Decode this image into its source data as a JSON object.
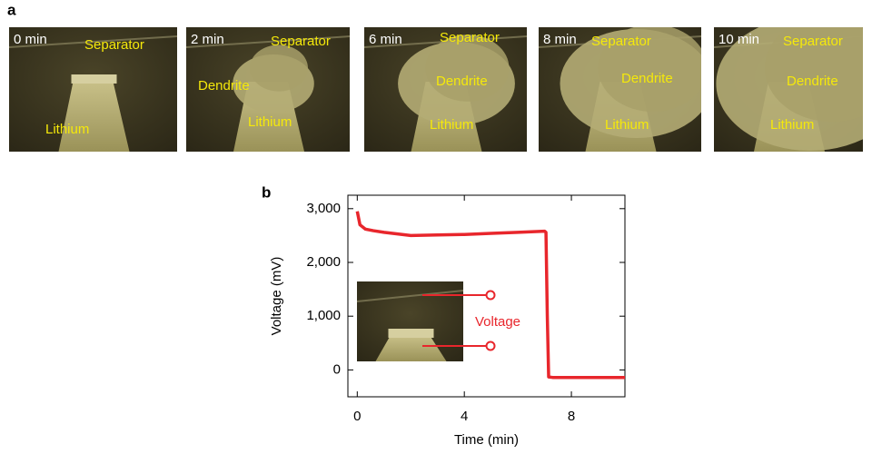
{
  "panel_a": {
    "label": "a",
    "frames": [
      {
        "time": "0 min",
        "labels": [
          "Separator",
          "Lithium"
        ]
      },
      {
        "time": "2 min",
        "labels": [
          "Separator",
          "Dendrite",
          "Lithium"
        ]
      },
      {
        "time": "6 min",
        "labels": [
          "Separator",
          "Dendrite",
          "Lithium"
        ]
      },
      {
        "time": "8 min",
        "labels": [
          "Separator",
          "Dendrite",
          "Lithium"
        ]
      },
      {
        "time": "10 min",
        "labels": [
          "Separator",
          "Dendrite",
          "Lithium"
        ]
      }
    ]
  },
  "chart_data": {
    "type": "line",
    "panel_label": "b",
    "x_label": "Time (min)",
    "y_label": "Voltage (mV)",
    "x": [
      0,
      0.1,
      0.3,
      0.6,
      1,
      2,
      3,
      4,
      5,
      6,
      7,
      7.05,
      7.1,
      7.15,
      7.3,
      8,
      9,
      10
    ],
    "series": [
      {
        "name": "Voltage",
        "color": "#e8262c",
        "values": [
          2950,
          2700,
          2620,
          2590,
          2560,
          2500,
          2510,
          2520,
          2540,
          2560,
          2580,
          2560,
          1000,
          -130,
          -140,
          -140,
          -140,
          -140
        ]
      }
    ],
    "xlim": [
      -0.35,
      10
    ],
    "xticks": [
      0,
      4,
      8
    ],
    "ylim": [
      -500,
      3250
    ],
    "yticks": [
      0,
      {
        "value": 1000,
        "label": "1,000"
      },
      {
        "value": 2000,
        "label": "2,000"
      },
      {
        "value": 3000,
        "label": "3,000"
      }
    ]
  }
}
